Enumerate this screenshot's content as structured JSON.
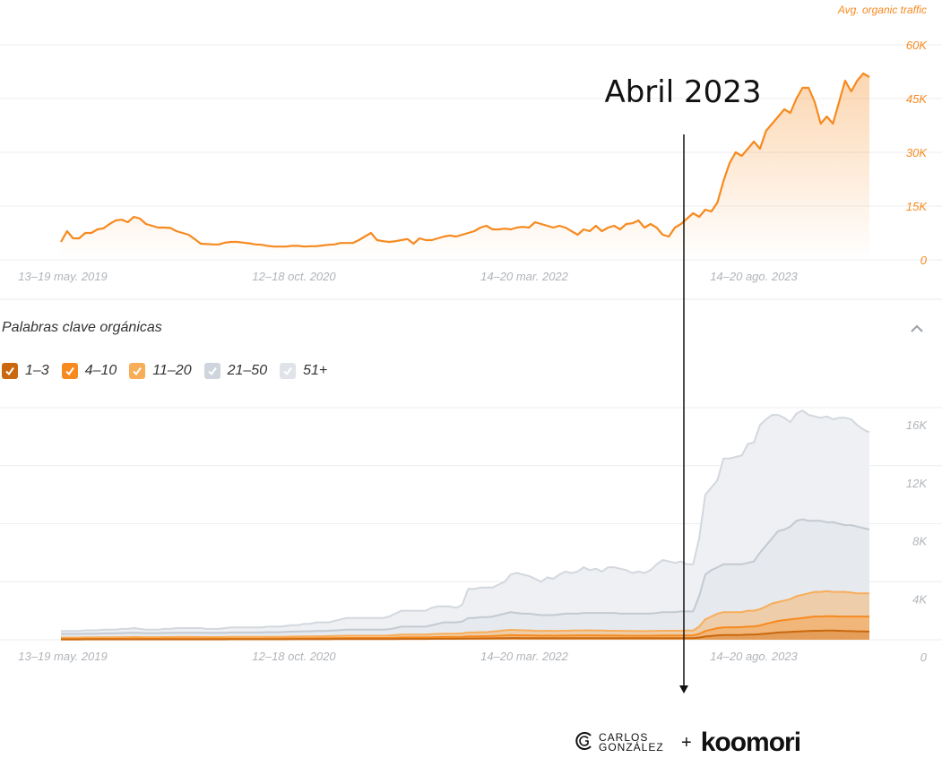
{
  "colors": {
    "orange": "#f68a1f",
    "orange_light": "#f8ad59",
    "orange_dark": "#c9680f",
    "gray_50": "#cfd5dc",
    "gray_51": "#e0e4e8",
    "axis_text": "#b0b4b9",
    "grid": "#eceef0"
  },
  "annotation": {
    "label": "Abril 2023"
  },
  "footer": {
    "brand_left": "CARLOS GONZÁLEZ",
    "plus": "+",
    "brand_right": "koomori"
  },
  "keywords_section": {
    "title": "Palabras clave orgánicas",
    "legend": [
      {
        "label": "1–3",
        "color": "#c9680f",
        "checked": true
      },
      {
        "label": "4–10",
        "color": "#f68a1f",
        "checked": true
      },
      {
        "label": "11–20",
        "color": "#f8ad59",
        "checked": true
      },
      {
        "label": "21–50",
        "color": "#cfd5dc",
        "checked": true
      },
      {
        "label": "51+",
        "color": "#e0e4e8",
        "checked": true
      }
    ]
  },
  "chart_data": [
    {
      "type": "area",
      "title": "",
      "series_label": "Avg. organic traffic",
      "x_tick_labels": [
        "13–19 may. 2019",
        "12–18 oct. 2020",
        "14–20 mar. 2022",
        "14–20 ago. 2023"
      ],
      "y_ticks": [
        "0",
        "15K",
        "30K",
        "45K",
        "60K"
      ],
      "ylim": [
        0,
        60000
      ],
      "grid": true,
      "x": [
        0,
        4,
        8,
        12,
        16,
        20,
        24,
        28,
        32,
        36,
        40,
        44,
        48,
        52,
        56,
        60,
        64,
        68,
        72,
        76,
        80,
        84,
        88,
        92,
        96,
        100,
        104,
        108,
        112,
        116,
        120,
        124,
        128,
        132,
        136,
        140,
        144,
        148,
        152,
        156,
        160,
        164,
        168,
        172,
        176,
        180,
        184,
        188,
        192,
        196,
        200,
        204,
        208,
        212,
        216,
        220,
        224,
        228,
        232,
        236,
        240,
        244,
        248,
        252,
        256,
        260,
        264,
        268,
        272,
        276,
        280,
        284,
        288,
        292,
        296,
        300,
        304,
        308,
        312,
        316,
        320,
        324,
        328,
        332,
        336,
        340,
        344,
        348,
        352,
        356,
        360,
        364,
        368,
        372,
        376,
        380,
        384,
        388,
        392,
        396,
        400,
        404,
        408,
        412,
        416,
        420,
        424,
        428,
        432,
        436,
        440,
        444,
        448,
        452,
        456,
        460,
        464,
        468,
        472,
        476,
        480,
        484,
        488,
        492,
        496,
        500,
        504,
        508,
        512,
        516,
        520,
        524,
        528,
        532
      ],
      "values": [
        5000,
        8000,
        6000,
        6000,
        7500,
        7500,
        8500,
        8800,
        10000,
        11000,
        11200,
        10500,
        12000,
        11500,
        10000,
        9500,
        9000,
        9000,
        8900,
        8000,
        7500,
        7000,
        5800,
        4500,
        4400,
        4300,
        4300,
        4800,
        5000,
        5000,
        4800,
        4600,
        4300,
        4200,
        3900,
        3700,
        3700,
        3700,
        3900,
        3900,
        3700,
        3800,
        3800,
        4000,
        4200,
        4300,
        4700,
        4700,
        4700,
        5500,
        6500,
        7500,
        5500,
        5200,
        5000,
        5200,
        5500,
        5800,
        4500,
        6000,
        5500,
        5500,
        6000,
        6500,
        6800,
        6500,
        7000,
        7500,
        8000,
        9000,
        9500,
        8500,
        8500,
        8700,
        8500,
        9000,
        9200,
        9000,
        10500,
        10000,
        9500,
        9000,
        9500,
        9000,
        8000,
        7000,
        8500,
        8000,
        9500,
        8000,
        9000,
        9500,
        8500,
        10000,
        10200,
        11000,
        9000,
        10000,
        9000,
        7000,
        6500,
        9000,
        10000,
        11500,
        13000,
        12000,
        14000,
        13500,
        16000,
        22000,
        27000,
        30000,
        29000,
        31000,
        33000,
        31000,
        36000,
        38000,
        40000,
        42000,
        41000,
        45000,
        48000,
        48000,
        44000,
        38000,
        40000,
        38000,
        44000,
        50000,
        47000,
        50000,
        52000,
        51000
      ],
      "values_x_unit": "weeks since 13–19 may. 2019"
    },
    {
      "type": "area",
      "title": "",
      "x_tick_labels": [
        "13–19 may. 2019",
        "12–18 oct. 2020",
        "14–20 mar. 2022",
        "14–20 ago. 2023"
      ],
      "y_ticks": [
        "0",
        "4K",
        "8K",
        "12K",
        "16K"
      ],
      "ylim": [
        0,
        16000
      ],
      "grid": true,
      "x": [
        0,
        4,
        8,
        12,
        16,
        20,
        24,
        28,
        32,
        36,
        40,
        44,
        48,
        52,
        56,
        60,
        64,
        68,
        72,
        76,
        80,
        84,
        88,
        92,
        96,
        100,
        104,
        108,
        112,
        116,
        120,
        124,
        128,
        132,
        136,
        140,
        144,
        148,
        152,
        156,
        160,
        164,
        168,
        172,
        176,
        180,
        184,
        188,
        192,
        196,
        200,
        204,
        208,
        212,
        216,
        220,
        224,
        228,
        232,
        236,
        240,
        244,
        248,
        252,
        256,
        260,
        264,
        268,
        272,
        276,
        280,
        284,
        288,
        292,
        296,
        300,
        304,
        308,
        312,
        316,
        320,
        324,
        328,
        332,
        336,
        340,
        344,
        348,
        352,
        356,
        360,
        364,
        368,
        372,
        376,
        380,
        384,
        388,
        392,
        396,
        400,
        404,
        408,
        412,
        416,
        420,
        424,
        428,
        432,
        436,
        440,
        444,
        448,
        452,
        456,
        460,
        464,
        468,
        472,
        476,
        480,
        484,
        488,
        492,
        496,
        500,
        504,
        508,
        512,
        516,
        520,
        524,
        528,
        532
      ],
      "series": [
        {
          "name": "51+",
          "values": [
            600,
            600,
            600,
            600,
            650,
            650,
            650,
            700,
            700,
            700,
            750,
            750,
            800,
            750,
            700,
            700,
            700,
            750,
            750,
            800,
            800,
            800,
            800,
            800,
            750,
            750,
            750,
            800,
            850,
            850,
            850,
            850,
            850,
            850,
            900,
            900,
            900,
            950,
            1000,
            1000,
            1100,
            1100,
            1200,
            1200,
            1200,
            1300,
            1400,
            1500,
            1500,
            1500,
            1500,
            1500,
            1500,
            1500,
            1600,
            1800,
            2000,
            2000,
            2000,
            2000,
            2000,
            2200,
            2300,
            2300,
            2300,
            2200,
            2400,
            3500,
            3500,
            3600,
            3600,
            3600,
            3800,
            4000,
            4500,
            4600,
            4500,
            4400,
            4200,
            4000,
            4300,
            4200,
            4500,
            4700,
            4600,
            4700,
            5000,
            4800,
            4900,
            4700,
            5000,
            5000,
            4900,
            4800,
            4600,
            4700,
            4600,
            4800,
            5200,
            5500,
            5400,
            5300,
            5400,
            5200,
            5200,
            7000,
            10000,
            10500,
            11000,
            12500,
            12500,
            12600,
            12700,
            13500,
            13600,
            14800,
            15200,
            15500,
            15500,
            15300,
            15000,
            15600,
            15800,
            15500,
            15400,
            15300,
            15400,
            15200,
            15300,
            15300,
            15200,
            14800,
            14500,
            14300
          ]
        },
        {
          "name": "21–50",
          "values": [
            400,
            400,
            400,
            400,
            420,
            420,
            420,
            440,
            440,
            450,
            460,
            470,
            480,
            470,
            460,
            460,
            460,
            470,
            470,
            480,
            480,
            480,
            480,
            480,
            470,
            470,
            470,
            480,
            500,
            500,
            500,
            500,
            500,
            500,
            520,
            520,
            520,
            540,
            560,
            560,
            580,
            580,
            600,
            600,
            620,
            640,
            660,
            700,
            700,
            700,
            700,
            700,
            700,
            700,
            720,
            800,
            900,
            900,
            900,
            900,
            900,
            1000,
            1100,
            1200,
            1200,
            1200,
            1250,
            1500,
            1500,
            1550,
            1550,
            1600,
            1700,
            1800,
            1900,
            1850,
            1800,
            1800,
            1750,
            1700,
            1700,
            1700,
            1750,
            1800,
            1800,
            1800,
            1850,
            1850,
            1850,
            1850,
            1850,
            1850,
            1800,
            1800,
            1800,
            1800,
            1800,
            1800,
            1850,
            1900,
            1900,
            1900,
            1950,
            1950,
            1950,
            3000,
            4500,
            4800,
            5000,
            5200,
            5200,
            5200,
            5200,
            5300,
            5400,
            6000,
            6500,
            7000,
            7500,
            7600,
            7800,
            8200,
            8300,
            8200,
            8200,
            8200,
            8100,
            8100,
            8000,
            7900,
            7900,
            7800,
            7700,
            7600
          ]
        },
        {
          "name": "11–20",
          "values": [
            150,
            150,
            150,
            150,
            160,
            160,
            160,
            170,
            170,
            175,
            180,
            180,
            190,
            185,
            180,
            180,
            180,
            185,
            185,
            190,
            190,
            190,
            190,
            190,
            185,
            185,
            185,
            190,
            195,
            195,
            195,
            195,
            195,
            195,
            200,
            200,
            200,
            210,
            220,
            220,
            230,
            230,
            240,
            240,
            250,
            260,
            270,
            280,
            280,
            280,
            280,
            280,
            280,
            280,
            290,
            320,
            350,
            350,
            350,
            350,
            350,
            380,
            400,
            420,
            420,
            420,
            440,
            500,
            500,
            520,
            520,
            560,
            600,
            650,
            680,
            660,
            650,
            640,
            620,
            600,
            620,
            600,
            610,
            620,
            630,
            640,
            640,
            650,
            640,
            630,
            620,
            620,
            610,
            600,
            600,
            590,
            590,
            600,
            610,
            620,
            620,
            620,
            620,
            630,
            630,
            900,
            1400,
            1600,
            1800,
            1900,
            1900,
            1900,
            1900,
            2000,
            2000,
            2100,
            2300,
            2500,
            2600,
            2700,
            2800,
            3000,
            3100,
            3200,
            3300,
            3300,
            3350,
            3300,
            3300,
            3300,
            3250,
            3200,
            3200,
            3200
          ]
        },
        {
          "name": "4–10",
          "values": [
            60,
            60,
            60,
            60,
            65,
            65,
            65,
            70,
            70,
            70,
            70,
            70,
            75,
            75,
            70,
            70,
            70,
            75,
            75,
            75,
            75,
            75,
            75,
            75,
            75,
            75,
            75,
            75,
            80,
            80,
            80,
            80,
            80,
            80,
            85,
            85,
            85,
            90,
            95,
            95,
            100,
            100,
            105,
            105,
            110,
            115,
            120,
            125,
            125,
            125,
            125,
            125,
            125,
            125,
            130,
            140,
            160,
            160,
            160,
            160,
            160,
            170,
            180,
            190,
            190,
            190,
            200,
            230,
            230,
            240,
            240,
            260,
            280,
            300,
            320,
            310,
            300,
            300,
            290,
            280,
            290,
            280,
            285,
            290,
            295,
            300,
            300,
            305,
            300,
            295,
            290,
            290,
            285,
            280,
            280,
            275,
            275,
            280,
            285,
            290,
            290,
            290,
            290,
            295,
            295,
            400,
            600,
            700,
            800,
            850,
            860,
            860,
            870,
            900,
            920,
            980,
            1100,
            1200,
            1300,
            1350,
            1400,
            1450,
            1500,
            1550,
            1600,
            1600,
            1620,
            1620,
            1600,
            1600,
            1600,
            1600,
            1600,
            1600
          ]
        },
        {
          "name": "1–3",
          "values": [
            20,
            20,
            20,
            20,
            22,
            22,
            22,
            24,
            24,
            25,
            25,
            25,
            26,
            26,
            25,
            25,
            25,
            26,
            26,
            26,
            26,
            26,
            26,
            26,
            26,
            26,
            26,
            26,
            28,
            28,
            28,
            28,
            28,
            28,
            30,
            30,
            30,
            32,
            34,
            34,
            36,
            36,
            38,
            38,
            40,
            42,
            44,
            46,
            46,
            46,
            46,
            46,
            46,
            46,
            48,
            52,
            58,
            58,
            58,
            58,
            58,
            62,
            66,
            70,
            70,
            70,
            74,
            85,
            85,
            90,
            90,
            96,
            104,
            112,
            120,
            116,
            112,
            112,
            108,
            104,
            108,
            104,
            106,
            108,
            110,
            112,
            112,
            114,
            112,
            110,
            108,
            108,
            106,
            104,
            104,
            102,
            102,
            104,
            106,
            108,
            108,
            108,
            108,
            110,
            110,
            150,
            220,
            260,
            300,
            320,
            330,
            330,
            335,
            350,
            360,
            380,
            420,
            460,
            500,
            520,
            540,
            560,
            580,
            600,
            620,
            620,
            630,
            630,
            620,
            600,
            590,
            580,
            570,
            560
          ]
        }
      ]
    }
  ]
}
